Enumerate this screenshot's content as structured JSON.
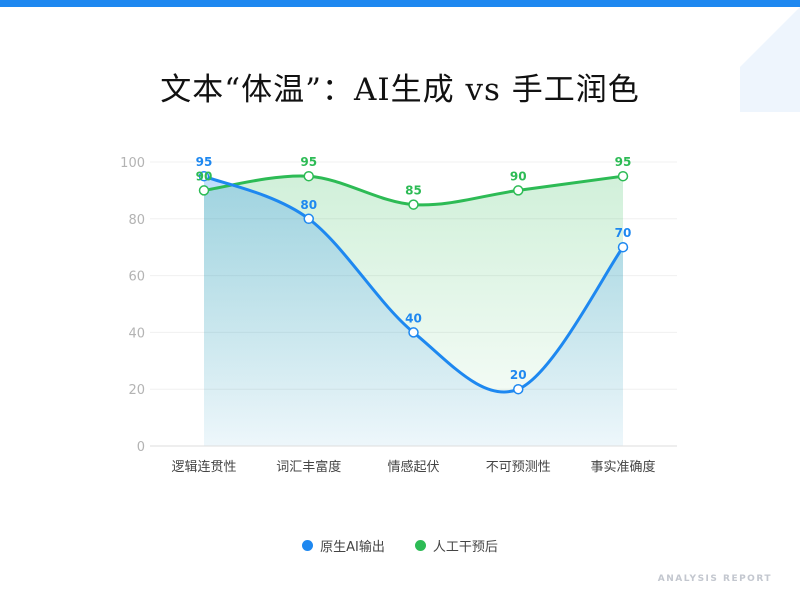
{
  "title": "文本“体温”：AI生成 vs 手工润色",
  "footer": "ANALYSIS REPORT",
  "colors": {
    "accent": "#1e88f0",
    "series_blue": "#1e88f0",
    "series_green": "#2dbb55"
  },
  "legend": {
    "items": [
      {
        "label": "原生AI输出",
        "color": "#1e88f0"
      },
      {
        "label": "人工干预后",
        "color": "#2dbb55"
      }
    ],
    "placement": "bottom-center"
  },
  "chart_data": {
    "type": "area",
    "title": "文本“体温”：AI生成 vs 手工润色",
    "categories": [
      "逻辑连贯性",
      "词汇丰富度",
      "情感起伏",
      "不可预测性",
      "事实准确度"
    ],
    "yticks": [
      "0",
      "20",
      "40",
      "60",
      "80",
      "100"
    ],
    "ylim": [
      0,
      100
    ],
    "grid": true,
    "series": [
      {
        "name": "原生AI输出",
        "color": "#1e88f0",
        "values": [
          95,
          80,
          40,
          20,
          70
        ]
      },
      {
        "name": "人工干预后",
        "color": "#2dbb55",
        "values": [
          90,
          95,
          85,
          90,
          95
        ]
      }
    ]
  }
}
